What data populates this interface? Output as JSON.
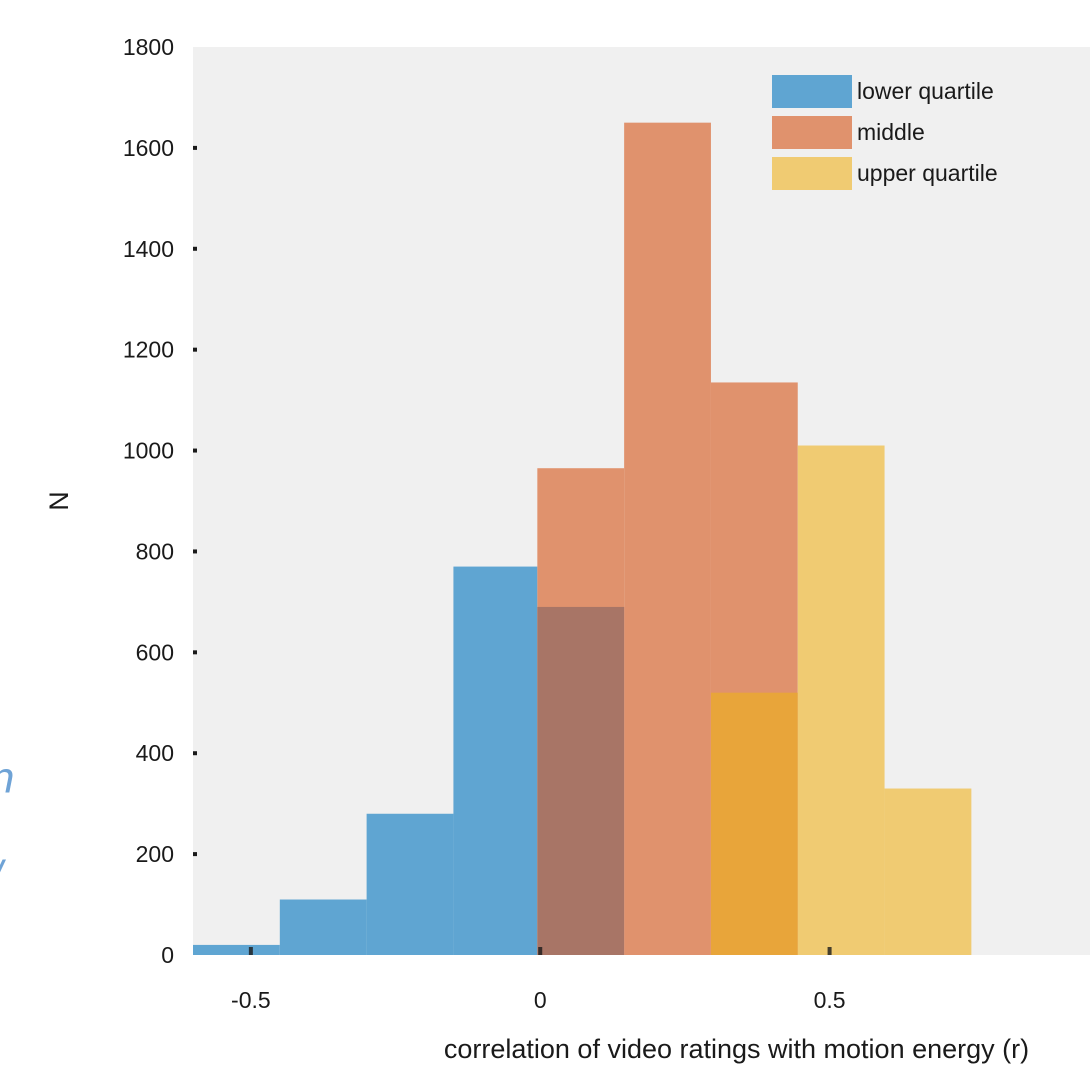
{
  "chart_data": {
    "type": "bar",
    "title": "",
    "xlabel": "correlation of video ratings with motion energy (r)",
    "ylabel": "N",
    "xlim": [
      -0.6,
      0.95
    ],
    "ylim": [
      0,
      1800
    ],
    "xticks": [
      -0.5,
      0,
      0.5
    ],
    "xtick_labels": [
      "-0.5",
      "0",
      "0.5"
    ],
    "yticks": [
      0,
      200,
      400,
      600,
      800,
      1000,
      1200,
      1400,
      1600,
      1800
    ],
    "ytick_labels": [
      "0",
      "200",
      "400",
      "600",
      "800",
      "1000",
      "1200",
      "1400",
      "1600",
      "1800"
    ],
    "grid": false,
    "legend_position": "top-right",
    "background": "#f0f0f0",
    "series": [
      {
        "name": "lower quartile",
        "color": "#5fa5d2",
        "opacity": 1.0,
        "bin_edges": [
          -0.6,
          -0.45,
          -0.3,
          -0.15,
          -0.005
        ],
        "counts": [
          20,
          110,
          280,
          770
        ]
      },
      {
        "name": "middle",
        "color": "#e0926d",
        "opacity": 1.0,
        "bin_edges": [
          -0.005,
          0.145,
          0.295,
          0.445
        ],
        "counts": [
          965,
          1650,
          1135
        ]
      },
      {
        "name": "upper quartile",
        "color": "#f0cb72",
        "opacity": 1.0,
        "bin_edges": [
          0.445,
          0.595,
          0.745
        ],
        "counts": [
          1010,
          330
        ]
      }
    ],
    "overlaps": [
      {
        "color": "#a87566",
        "bin_edges": [
          -0.005,
          0.145
        ],
        "count": 690
      },
      {
        "color": "#e8a53a",
        "bin_edges": [
          0.295,
          0.445
        ],
        "count": 520
      }
    ],
    "edge_glyphs": [
      {
        "text": "n",
        "y_value": 350
      },
      {
        "text": "/",
        "y_value": 155
      }
    ]
  }
}
